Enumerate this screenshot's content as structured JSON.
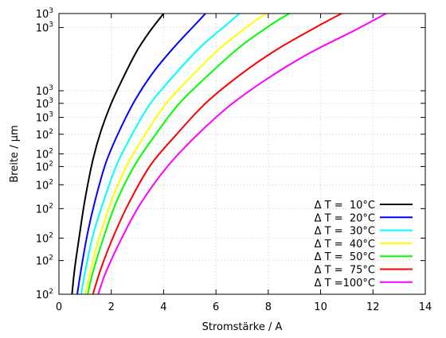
{
  "chart_data": {
    "type": "line",
    "xlabel": "Stromstärke / A",
    "ylabel": "Breite / µm",
    "xlim": [
      0,
      14
    ],
    "ylim": [
      0,
      1
    ],
    "grid": true,
    "legend_position": "bottom-right",
    "x_ticks": [
      "0",
      "2",
      "4",
      "6",
      "8",
      "10",
      "12",
      "14"
    ],
    "y_ticks": [
      {
        "base": "10",
        "exp": "3",
        "value": 1.0
      },
      {
        "base": "10",
        "exp": "3",
        "value": 0.95
      },
      {
        "base": "10",
        "exp": "3",
        "value": 0.725
      },
      {
        "base": "10",
        "exp": "3",
        "value": 0.68
      },
      {
        "base": "10",
        "exp": "3",
        "value": 0.63
      },
      {
        "base": "10",
        "exp": "2",
        "value": 0.57
      },
      {
        "base": "10",
        "exp": "2",
        "value": 0.5
      },
      {
        "base": "10",
        "exp": "2",
        "value": 0.455
      },
      {
        "base": "10",
        "exp": "2",
        "value": 0.39
      },
      {
        "base": "10",
        "exp": "2",
        "value": 0.305
      },
      {
        "base": "10",
        "exp": "2",
        "value": 0.2
      },
      {
        "base": "10",
        "exp": "2",
        "value": 0.12
      },
      {
        "base": "10",
        "exp": "2",
        "value": 0.0
      }
    ],
    "series": [
      {
        "name": "Δ T =  10°C",
        "color": "#000000",
        "x": [
          0.5,
          0.6,
          0.8,
          1.0,
          1.3,
          1.6,
          2.0,
          2.5,
          3.0,
          3.5,
          4.0
        ],
        "y": [
          0.0,
          0.09,
          0.22,
          0.34,
          0.48,
          0.58,
          0.68,
          0.78,
          0.87,
          0.94,
          1.0
        ]
      },
      {
        "name": "Δ T =  20°C",
        "color": "#0000ff",
        "x": [
          0.7,
          0.85,
          1.1,
          1.4,
          1.8,
          2.3,
          2.9,
          3.6,
          4.4,
          5.2,
          5.6
        ],
        "y": [
          0.0,
          0.09,
          0.22,
          0.34,
          0.47,
          0.58,
          0.69,
          0.79,
          0.88,
          0.96,
          1.0
        ]
      },
      {
        "name": "Δ T =  30°C",
        "color": "#00ffff",
        "x": [
          0.85,
          1.0,
          1.3,
          1.7,
          2.2,
          2.8,
          3.5,
          4.4,
          5.4,
          6.4,
          6.9
        ],
        "y": [
          0.0,
          0.08,
          0.21,
          0.33,
          0.46,
          0.57,
          0.68,
          0.78,
          0.88,
          0.96,
          1.0
        ]
      },
      {
        "name": "Δ T =  40°C",
        "color": "#ffff00",
        "x": [
          1.0,
          1.2,
          1.5,
          2.0,
          2.6,
          3.3,
          4.1,
          5.1,
          6.2,
          7.3,
          7.9
        ],
        "y": [
          0.0,
          0.08,
          0.19,
          0.33,
          0.46,
          0.57,
          0.68,
          0.78,
          0.88,
          0.96,
          1.0
        ]
      },
      {
        "name": "Δ T =  50°C",
        "color": "#00ff00",
        "x": [
          1.1,
          1.3,
          1.7,
          2.2,
          2.9,
          3.7,
          4.6,
          5.7,
          6.9,
          8.1,
          8.8
        ],
        "y": [
          0.0,
          0.08,
          0.2,
          0.33,
          0.46,
          0.57,
          0.68,
          0.78,
          0.88,
          0.96,
          1.0
        ]
      },
      {
        "name": "Δ T =  75°C",
        "color": "#ff0000",
        "x": [
          1.3,
          1.6,
          2.1,
          2.7,
          3.5,
          4.5,
          5.6,
          6.9,
          8.3,
          9.8,
          10.8
        ],
        "y": [
          0.0,
          0.09,
          0.21,
          0.33,
          0.46,
          0.57,
          0.68,
          0.78,
          0.87,
          0.95,
          1.0
        ]
      },
      {
        "name": "Δ T =100°C",
        "color": "#ff00ff",
        "x": [
          1.5,
          1.8,
          2.4,
          3.1,
          4.1,
          5.2,
          6.5,
          8.0,
          9.6,
          11.3,
          12.5
        ],
        "y": [
          0.0,
          0.08,
          0.2,
          0.32,
          0.45,
          0.56,
          0.67,
          0.77,
          0.86,
          0.94,
          1.0
        ]
      }
    ]
  }
}
